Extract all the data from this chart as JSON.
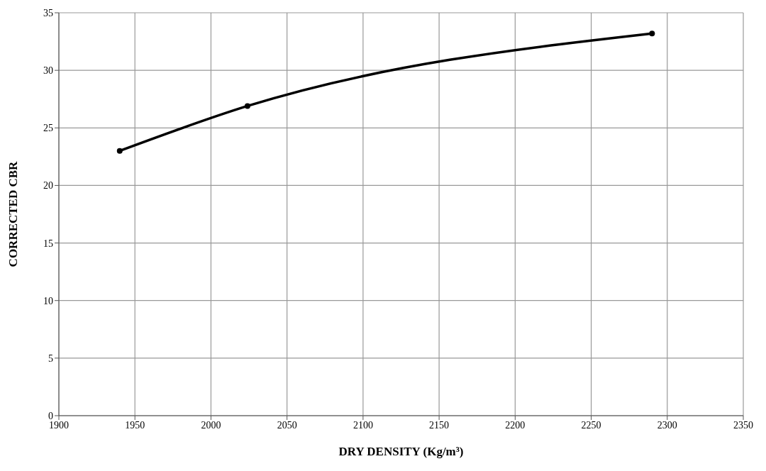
{
  "chart_data": {
    "type": "line",
    "xlabel": "DRY DENSITY (Kg/m³)",
    "ylabel": "CORRECTED CBR",
    "x": [
      1940,
      2024,
      2290
    ],
    "series": [
      {
        "color": "#000000",
        "values": [
          23,
          26.9,
          33.2
        ]
      }
    ],
    "xlim": [
      1900,
      2350
    ],
    "xticks": [
      1900,
      1950,
      2000,
      2050,
      2100,
      2150,
      2200,
      2250,
      2300,
      2350
    ],
    "ylim": [
      0,
      35
    ],
    "yticks": [
      0,
      5,
      10,
      15,
      20,
      25,
      30,
      35
    ],
    "grid": true,
    "marker": "circle",
    "line_style": "solid"
  }
}
